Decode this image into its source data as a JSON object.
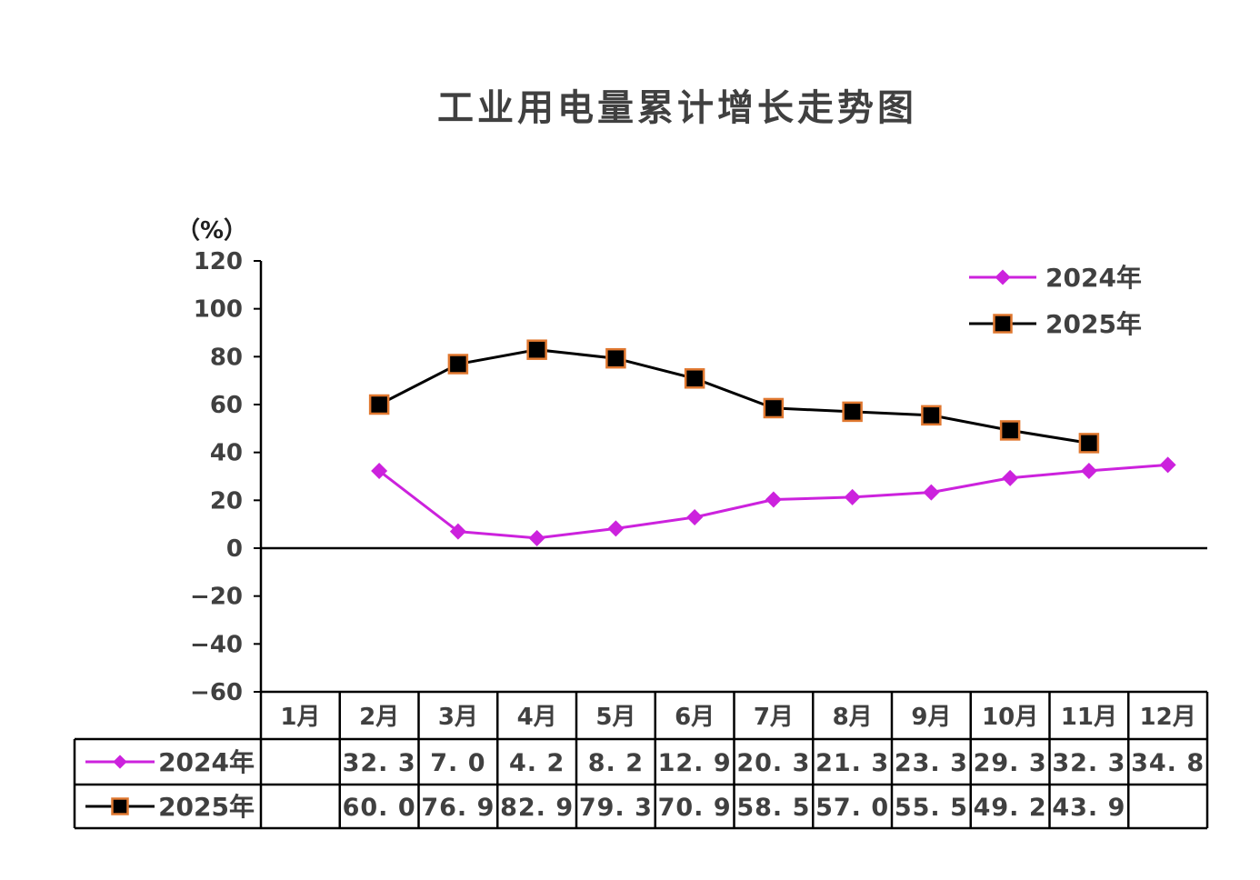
{
  "chart_data": {
    "type": "line",
    "title": "工业用电量累计增长走势图",
    "ylabel": "（%）",
    "ylim": [
      -60,
      120
    ],
    "yticks": [
      -60,
      -40,
      -20,
      0,
      20,
      40,
      60,
      80,
      100,
      120
    ],
    "categories": [
      "1月",
      "2月",
      "3月",
      "4月",
      "5月",
      "6月",
      "7月",
      "8月",
      "9月",
      "10月",
      "11月",
      "12月"
    ],
    "series": [
      {
        "name": "2024年",
        "color": "#CC22DD",
        "marker": "diamond",
        "values": [
          null,
          32.3,
          7.0,
          4.2,
          8.2,
          12.9,
          20.3,
          21.3,
          23.3,
          29.3,
          32.3,
          34.8
        ],
        "labels": [
          "",
          "32.3",
          "7.0",
          "4.2",
          "8.2",
          "12.9",
          "20.3",
          "21.3",
          "23.3",
          "29.3",
          "32.3",
          "34.8"
        ]
      },
      {
        "name": "2025年",
        "color": "#000000",
        "marker_edge": "#E07830",
        "marker": "square",
        "values": [
          null,
          60.0,
          76.9,
          82.9,
          79.3,
          70.9,
          58.5,
          57.0,
          55.5,
          49.2,
          43.9,
          null
        ],
        "labels": [
          "",
          "60.0",
          "76.9",
          "82.9",
          "79.3",
          "70.9",
          "58.5",
          "57.0",
          "55.5",
          "49.2",
          "43.9",
          ""
        ]
      }
    ],
    "legend": "top-right",
    "grid": false,
    "data_table": true
  }
}
